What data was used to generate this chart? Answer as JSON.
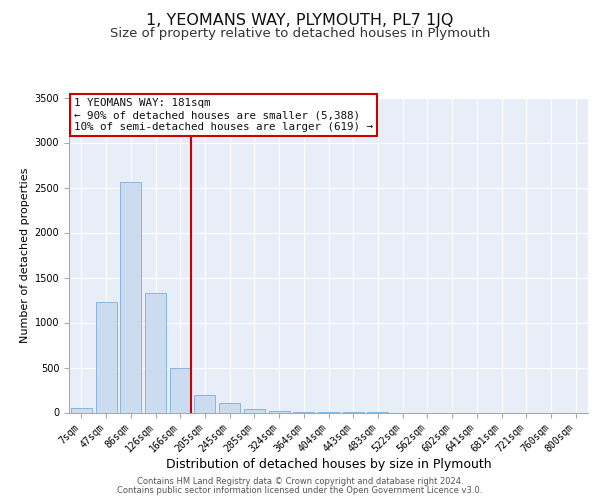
{
  "title": "1, YEOMANS WAY, PLYMOUTH, PL7 1JQ",
  "subtitle": "Size of property relative to detached houses in Plymouth",
  "xlabel": "Distribution of detached houses by size in Plymouth",
  "ylabel": "Number of detached properties",
  "bar_labels": [
    "7sqm",
    "47sqm",
    "86sqm",
    "126sqm",
    "166sqm",
    "205sqm",
    "245sqm",
    "285sqm",
    "324sqm",
    "364sqm",
    "404sqm",
    "443sqm",
    "483sqm",
    "522sqm",
    "562sqm",
    "602sqm",
    "641sqm",
    "681sqm",
    "721sqm",
    "760sqm",
    "800sqm"
  ],
  "bar_values": [
    50,
    1230,
    2560,
    1330,
    500,
    200,
    110,
    40,
    15,
    5,
    3,
    2,
    1,
    0,
    0,
    0,
    0,
    0,
    0,
    0,
    0
  ],
  "bar_color": "#ccdcf0",
  "bar_edge_color": "#7aaed6",
  "vline_color": "#cc0000",
  "annotation_text": "1 YEOMANS WAY: 181sqm\n← 90% of detached houses are smaller (5,388)\n10% of semi-detached houses are larger (619) →",
  "annotation_box_edge_color": "#cc0000",
  "annotation_text_color": "#111111",
  "ylim": [
    0,
    3500
  ],
  "yticks": [
    0,
    500,
    1000,
    1500,
    2000,
    2500,
    3000,
    3500
  ],
  "background_color": "#e8eef8",
  "grid_color": "#ffffff",
  "footer_line1": "Contains HM Land Registry data © Crown copyright and database right 2024.",
  "footer_line2": "Contains public sector information licensed under the Open Government Licence v3.0.",
  "title_fontsize": 11.5,
  "subtitle_fontsize": 9.5,
  "xlabel_fontsize": 9,
  "ylabel_fontsize": 8,
  "tick_fontsize": 7,
  "annotation_fontsize": 7.8,
  "footer_fontsize": 6
}
